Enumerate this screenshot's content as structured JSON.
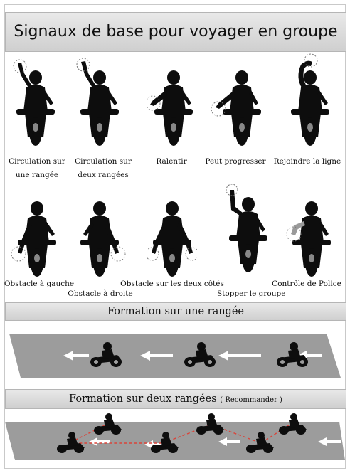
{
  "title": "Signaux de base pour voyager en groupe",
  "signals_row1": [
    {
      "label_line1": "Circulation sur",
      "label_line2": "une rangée"
    },
    {
      "label_line1": "Circulation sur",
      "label_line2": "deux rangées"
    },
    {
      "label_line1": "Ralentir",
      "label_line2": ""
    },
    {
      "label_line1": "Peut progresser",
      "label_line2": ""
    },
    {
      "label_line1": "Rejoindre la ligne",
      "label_line2": ""
    }
  ],
  "signals_row2": [
    {
      "label": "Obstacle à gauche"
    },
    {
      "label": "Obstacle à droite"
    },
    {
      "label": "Obstacle sur les deux côtés"
    },
    {
      "label": "Stopper le groupe"
    },
    {
      "label": "Contrôle de Police"
    }
  ],
  "formation_single": {
    "title": "Formation sur une rangée"
  },
  "formation_double": {
    "title": "Formation sur deux rangées",
    "note": "( Recommander )"
  },
  "colors": {
    "rider": "#0d0d0d",
    "road": "#9c9c9c",
    "arrow": "#ffffff",
    "connector": "#d9443a",
    "banner": "#d8d8d8"
  }
}
